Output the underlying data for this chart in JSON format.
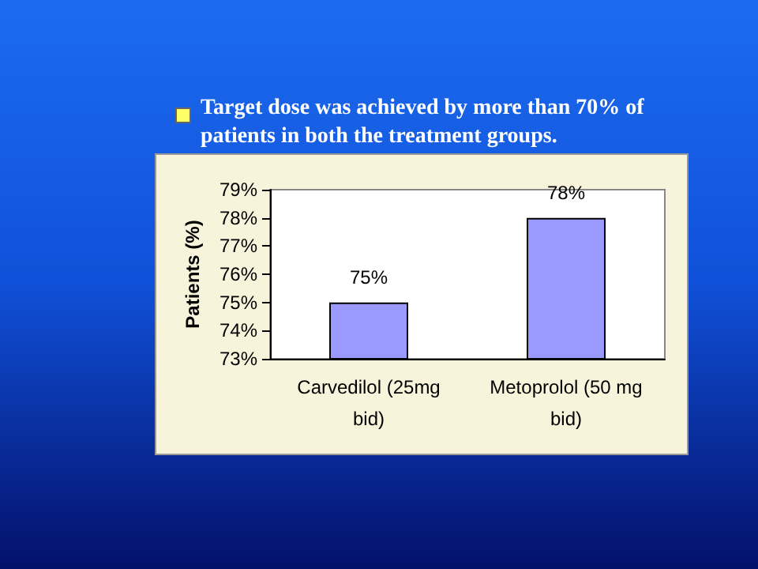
{
  "chart_data": {
    "type": "bar",
    "title": "Target dose was achieved by more than 70% of patients in both the treatment groups.",
    "ylabel": "Patients (%)",
    "categories": [
      "Carvedilol (25mg bid)",
      "Metoprolol (50 mg bid)"
    ],
    "values": [
      75,
      78
    ],
    "color": "#9999ff",
    "value_labels": [
      "75%",
      "78%"
    ],
    "ylim": [
      73,
      79
    ],
    "yticks": [
      {
        "value": 73,
        "label": "73%"
      },
      {
        "value": 74,
        "label": "74%"
      },
      {
        "value": 75,
        "label": "75%"
      },
      {
        "value": 76,
        "label": "76%"
      },
      {
        "value": 77,
        "label": "77%"
      },
      {
        "value": 78,
        "label": "78%"
      },
      {
        "value": 79,
        "label": "79%"
      }
    ],
    "grid": false
  }
}
